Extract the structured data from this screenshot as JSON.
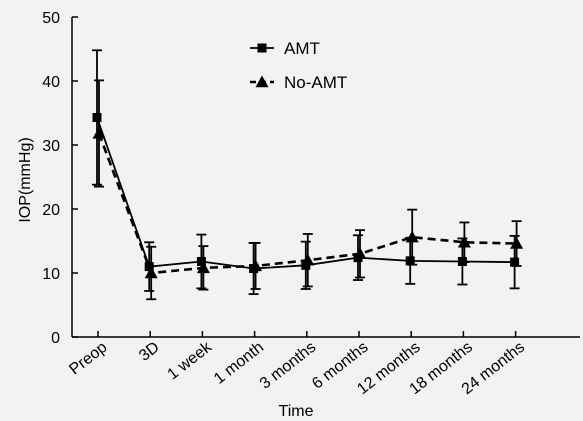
{
  "chart_data": {
    "type": "line",
    "xlabel": "Time",
    "ylabel": "IOP(mmHg)",
    "ylim": [
      0,
      50
    ],
    "yticks": [
      0,
      10,
      20,
      30,
      40,
      50
    ],
    "categories": [
      "Preop",
      "3D",
      "1 week",
      "1 month",
      "3 months",
      "6 months",
      "12 months",
      "18 months",
      "24 months"
    ],
    "grid": false,
    "legend_position": "top-center",
    "series": [
      {
        "name": "AMT",
        "marker": "square",
        "line_style": "solid",
        "color": "#000000",
        "values": [
          34.3,
          11.0,
          11.8,
          10.7,
          11.2,
          12.4,
          11.9,
          11.8,
          11.7
        ],
        "error": [
          10.5,
          3.8,
          4.2,
          4.0,
          3.7,
          3.5,
          3.6,
          3.6,
          4.1
        ]
      },
      {
        "name": "No-AMT",
        "marker": "triangle",
        "line_style": "dashed",
        "color": "#000000",
        "values": [
          31.8,
          10.0,
          10.8,
          11.1,
          12.0,
          13.0,
          15.6,
          14.8,
          14.6
        ],
        "error": [
          8.3,
          4.1,
          3.4,
          3.6,
          4.1,
          3.7,
          4.3,
          3.1,
          3.5
        ]
      }
    ]
  }
}
